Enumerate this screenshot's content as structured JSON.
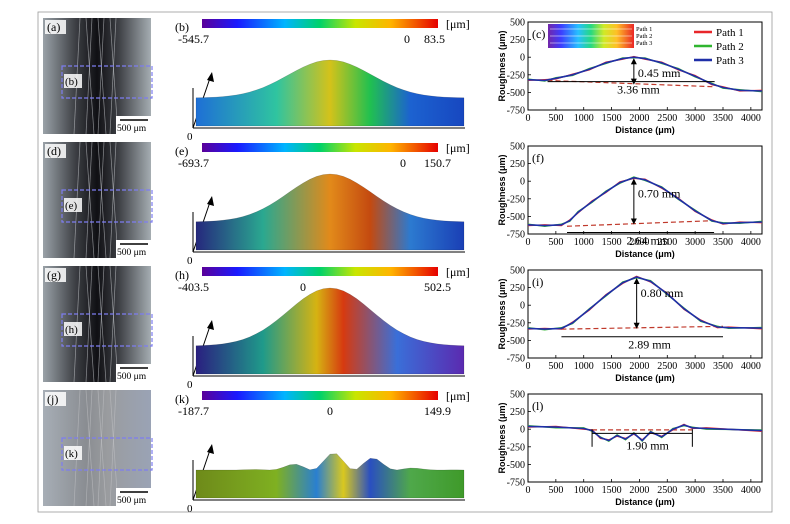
{
  "rows": [
    {
      "photo_label": "(a)",
      "box_label": "(b)",
      "scalebar": "500 μm",
      "map_label": "(b)",
      "unit": "[μm]",
      "min": "-545.7",
      "zero": "0",
      "max": "83.5",
      "plot_label": "(c)",
      "inset": [
        "Path 1",
        "Path 2",
        "Path 3"
      ],
      "annotations": [
        "0.45 mm",
        "3.36 mm"
      ]
    },
    {
      "photo_label": "(d)",
      "box_label": "(e)",
      "scalebar": "500 μm",
      "map_label": "(e)",
      "unit": "[μm]",
      "min": "-693.7",
      "zero": "0",
      "max": "150.7",
      "plot_label": "(f)",
      "annotations": [
        "0.70 mm",
        "2.64 mm"
      ]
    },
    {
      "photo_label": "(g)",
      "box_label": "(h)",
      "scalebar": "500 μm",
      "map_label": "(h)",
      "unit": "[μm]",
      "min": "-403.5",
      "zero": "0",
      "max": "502.5",
      "plot_label": "(i)",
      "annotations": [
        "0.80 mm",
        "2.89 mm"
      ]
    },
    {
      "photo_label": "(j)",
      "box_label": "(k)",
      "scalebar": "500 μm",
      "map_label": "(k)",
      "unit": "[μm]",
      "min": "-187.7",
      "zero": "0",
      "max": "149.9",
      "plot_label": "(l)",
      "annotations": [
        "1.90 mm"
      ]
    }
  ],
  "map_origin": "0",
  "legend": [
    "Path 1",
    "Path 2",
    "Path 3"
  ],
  "colors": {
    "path1": "#e8262a",
    "path2": "#2fb52f",
    "path3": "#1f2fa8",
    "dash": "#c0392b",
    "box": "#7d7df0"
  },
  "chart_data": [
    {
      "type": "line",
      "panel": "(c)",
      "xlabel": "Distance (μm)",
      "ylabel": "Roughness (μm)",
      "xlim": [
        0,
        4200
      ],
      "ylim": [
        -750,
        500
      ],
      "xticks": [
        0,
        500,
        1000,
        1500,
        2000,
        2500,
        3000,
        3500,
        4000
      ],
      "yticks": [
        500,
        250,
        0,
        -250,
        -500,
        -750
      ],
      "profile": [
        [
          0,
          -320
        ],
        [
          300,
          -330
        ],
        [
          500,
          -300
        ],
        [
          800,
          -250
        ],
        [
          1100,
          -170
        ],
        [
          1400,
          -80
        ],
        [
          1700,
          -20
        ],
        [
          1900,
          0
        ],
        [
          2100,
          -20
        ],
        [
          2400,
          -80
        ],
        [
          2700,
          -170
        ],
        [
          3000,
          -270
        ],
        [
          3300,
          -380
        ],
        [
          3500,
          -430
        ],
        [
          3800,
          -470
        ],
        [
          4200,
          -480
        ]
      ],
      "baseline": [
        [
          350,
          -330
        ],
        [
          3350,
          -420
        ]
      ]
    },
    {
      "type": "line",
      "panel": "(f)",
      "xlabel": "Distance (μm)",
      "ylabel": "Roughness (μm)",
      "xlim": [
        0,
        4200
      ],
      "ylim": [
        -750,
        500
      ],
      "xticks": [
        0,
        500,
        1000,
        1500,
        2000,
        2500,
        3000,
        3500,
        4000
      ],
      "yticks": [
        500,
        250,
        0,
        -250,
        -500,
        -750
      ],
      "profile": [
        [
          0,
          -620
        ],
        [
          300,
          -630
        ],
        [
          600,
          -620
        ],
        [
          750,
          -560
        ],
        [
          900,
          -440
        ],
        [
          1150,
          -290
        ],
        [
          1400,
          -150
        ],
        [
          1650,
          -20
        ],
        [
          1900,
          50
        ],
        [
          2100,
          20
        ],
        [
          2400,
          -90
        ],
        [
          2700,
          -250
        ],
        [
          3000,
          -420
        ],
        [
          3300,
          -560
        ],
        [
          3500,
          -600
        ],
        [
          3800,
          -590
        ],
        [
          4200,
          -580
        ]
      ],
      "baseline": [
        [
          700,
          -640
        ],
        [
          3340,
          -560
        ]
      ]
    },
    {
      "type": "line",
      "panel": "(i)",
      "xlabel": "Distance (μm)",
      "ylabel": "Roughness (μm)",
      "xlim": [
        0,
        4200
      ],
      "ylim": [
        -750,
        500
      ],
      "xticks": [
        0,
        500,
        1000,
        1500,
        2000,
        2500,
        3000,
        3500,
        4000
      ],
      "yticks": [
        500,
        250,
        0,
        -250,
        -500,
        -750
      ],
      "profile": [
        [
          0,
          -330
        ],
        [
          300,
          -340
        ],
        [
          600,
          -330
        ],
        [
          800,
          -250
        ],
        [
          1100,
          -60
        ],
        [
          1400,
          140
        ],
        [
          1700,
          320
        ],
        [
          1950,
          400
        ],
        [
          2200,
          340
        ],
        [
          2500,
          160
        ],
        [
          2800,
          -50
        ],
        [
          3100,
          -220
        ],
        [
          3400,
          -310
        ],
        [
          3600,
          -320
        ],
        [
          4200,
          -325
        ]
      ],
      "baseline": [
        [
          600,
          -340
        ],
        [
          3500,
          -300
        ]
      ]
    },
    {
      "type": "line",
      "panel": "(l)",
      "xlabel": "Distance (μm)",
      "ylabel": "Roughness (μm)",
      "xlim": [
        0,
        4200
      ],
      "ylim": [
        -750,
        500
      ],
      "xticks": [
        0,
        500,
        1000,
        1500,
        2000,
        2500,
        3000,
        3500,
        4000
      ],
      "yticks": [
        500,
        250,
        0,
        -250,
        -500,
        -750
      ],
      "profile": [
        [
          0,
          40
        ],
        [
          500,
          30
        ],
        [
          1000,
          10
        ],
        [
          1150,
          -20
        ],
        [
          1300,
          -120
        ],
        [
          1450,
          -160
        ],
        [
          1600,
          -90
        ],
        [
          1750,
          -140
        ],
        [
          1900,
          -60
        ],
        [
          2050,
          -160
        ],
        [
          2200,
          -40
        ],
        [
          2400,
          -110
        ],
        [
          2600,
          0
        ],
        [
          2800,
          60
        ],
        [
          2950,
          20
        ],
        [
          3200,
          10
        ],
        [
          4200,
          -20
        ]
      ],
      "baseline": [
        [
          1150,
          -10
        ],
        [
          2950,
          -10
        ]
      ]
    }
  ]
}
